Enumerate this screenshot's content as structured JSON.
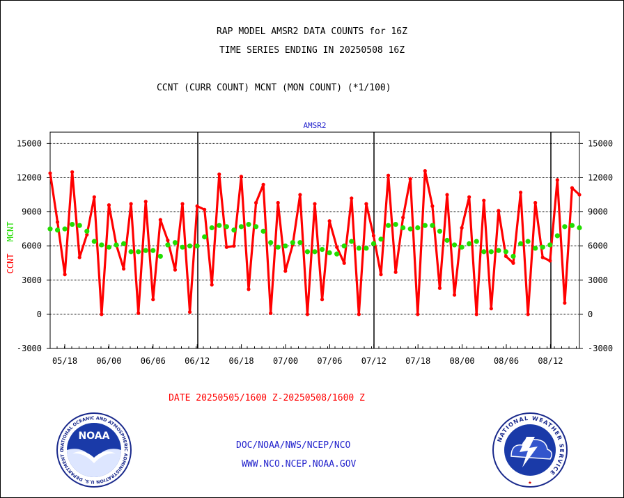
{
  "header": {
    "line1": "RAP MODEL AMSR2 DATA COUNTS for 16Z",
    "line2": "TIME SERIES ENDING IN 20250508 16Z",
    "line3": "CCNT (CURR COUNT) MCNT (MON COUNT) (*1/100)"
  },
  "chart_data": {
    "type": "line",
    "title": "AMSR2",
    "ylabel_ccnt": "CCNT",
    "ylabel_mcnt": "MCNT",
    "ylim": [
      -3000,
      16000
    ],
    "yticks": [
      -3000,
      0,
      3000,
      6000,
      9000,
      12000,
      15000
    ],
    "ytick_labels": [
      "-3000",
      "0",
      "3000",
      "6000",
      "9000",
      "12000",
      "15000"
    ],
    "xticks": [
      "05/18",
      "06/00",
      "06/06",
      "06/12",
      "06/18",
      "07/00",
      "07/06",
      "07/12",
      "07/18",
      "08/00",
      "08/06",
      "08/12"
    ],
    "xlabel": "DATE 20250505/1600 Z-20250508/1600 Z",
    "grid": true,
    "series": [
      {
        "name": "CCNT",
        "color": "#ff0000",
        "values": [
          12400,
          8100,
          3500,
          12500,
          5000,
          7000,
          10300,
          0,
          9600,
          6100,
          4000,
          9700,
          100,
          9900,
          1300,
          8300,
          6500,
          3900,
          9700,
          200,
          9500,
          9200,
          2600,
          12300,
          5900,
          6000,
          12100,
          2200,
          9800,
          11400,
          100,
          9800,
          3800,
          6100,
          10500,
          0,
          9700,
          1300,
          8200,
          5900,
          4500,
          10200,
          0,
          9700,
          6900,
          3500,
          12200,
          3700,
          8500,
          11900,
          0,
          12600,
          9500,
          2300,
          10500,
          1700,
          7600,
          10300,
          0,
          10000,
          500,
          9100,
          5100,
          4500,
          10700,
          0,
          9800,
          5000,
          4700,
          11800,
          1000,
          11100,
          10500
        ]
      },
      {
        "name": "MCNT",
        "color": "#22dd00",
        "values": [
          7500,
          7400,
          7500,
          7900,
          7800,
          7300,
          6400,
          6100,
          5900,
          6100,
          6200,
          5500,
          5500,
          5600,
          5600,
          5100,
          6100,
          6300,
          5900,
          6000,
          6000,
          6800,
          7600,
          7800,
          7700,
          7400,
          7700,
          7900,
          7700,
          7300,
          6300,
          5900,
          6000,
          6300,
          6300,
          5500,
          5500,
          5700,
          5400,
          5300,
          6000,
          6400,
          5800,
          5800,
          6200,
          6600,
          7800,
          7900,
          7600,
          7500,
          7600,
          7800,
          7800,
          7300,
          6500,
          6100,
          5900,
          6200,
          6400,
          5500,
          5500,
          5600,
          5500,
          5100,
          6200,
          6400,
          5800,
          5900,
          6100,
          6900,
          7700,
          7800,
          7600
        ]
      }
    ]
  },
  "footer": {
    "link1": "DOC/NOAA/NWS/NCEP/NCO",
    "link2": "WWW.NCO.NCEP.NOAA.GOV"
  },
  "logos": {
    "left_ring_text": "NATIONAL OCEANIC AND ATMOSPHERIC ADMINISTRATION U.S. DEPARTMENT OF COMMERCE",
    "left_center_text": "NOAA",
    "right_ring_text": "NATIONAL WEATHER SERVICE"
  }
}
